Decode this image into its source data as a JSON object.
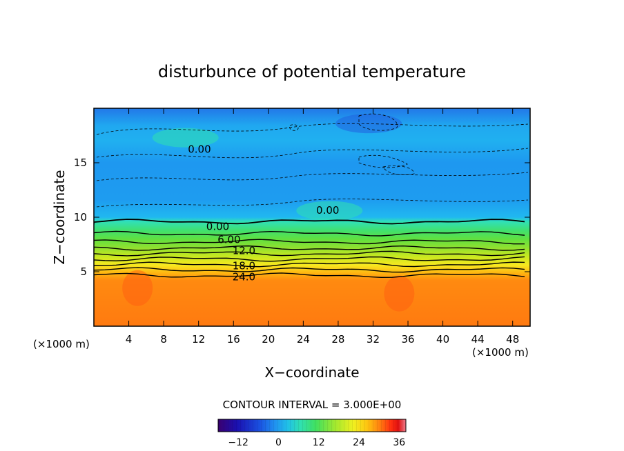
{
  "colors": {
    "background": "#ffffff",
    "text": "#000000",
    "contour_line": "#000000",
    "colormap": [
      "#3a0070",
      "#1a10b0",
      "#1a50e0",
      "#2090f0",
      "#20c0e8",
      "#30e0b0",
      "#40e060",
      "#a0e830",
      "#f0f020",
      "#ffc010",
      "#ff8010",
      "#ff3010",
      "#e01010",
      "#f08090"
    ]
  },
  "chart_data": {
    "type": "heatmap",
    "title": "disturbunce of potential temperature",
    "xlabel": "X−coordinate",
    "ylabel": "Z−coordinate",
    "x_unit_left": "(×1000 m)",
    "x_unit_right": "(×1000 m)",
    "xlim": [
      0,
      50
    ],
    "ylim": [
      0,
      20
    ],
    "x_ticks": [
      4,
      8,
      12,
      16,
      20,
      24,
      28,
      32,
      36,
      40,
      44,
      48
    ],
    "x_tick_labels": [
      "4",
      "8",
      "12",
      "16",
      "20",
      "24",
      "28",
      "32",
      "36",
      "40",
      "44",
      "48"
    ],
    "y_ticks": [
      5,
      10,
      15
    ],
    "y_tick_labels": [
      "5",
      "10",
      "15"
    ],
    "contour_interval_text": "CONTOUR INTERVAL = 3.000E+00",
    "colorbar": {
      "range": [
        -18,
        38
      ],
      "ticks": [
        -12,
        0,
        12,
        24,
        36
      ],
      "tick_labels": [
        "−12",
        "0",
        "12",
        "24",
        "36"
      ]
    },
    "contour_levels": [
      0,
      3,
      6,
      9,
      12,
      15,
      18,
      21,
      24
    ],
    "contour_labels": [
      {
        "text": "0.00",
        "x": 12.1,
        "z": 16.3
      },
      {
        "text": "0.00",
        "x": 26.8,
        "z": 10.7
      },
      {
        "text": "0.00",
        "x": 14.2,
        "z": 9.2
      },
      {
        "text": "6.00",
        "x": 15.5,
        "z": 8.0
      },
      {
        "text": "12.0",
        "x": 17.2,
        "z": 7.0
      },
      {
        "text": "18.0",
        "x": 17.2,
        "z": 5.6
      },
      {
        "text": "24.0",
        "x": 17.2,
        "z": 4.6
      }
    ],
    "vertical_profile": [
      {
        "z": 0.0,
        "theta": 28
      },
      {
        "z": 4.0,
        "theta": 28
      },
      {
        "z": 4.5,
        "theta": 25
      },
      {
        "z": 5.0,
        "theta": 22
      },
      {
        "z": 5.5,
        "theta": 19
      },
      {
        "z": 6.0,
        "theta": 16
      },
      {
        "z": 6.5,
        "theta": 13
      },
      {
        "z": 7.0,
        "theta": 10
      },
      {
        "z": 7.5,
        "theta": 7
      },
      {
        "z": 8.0,
        "theta": 5
      },
      {
        "z": 8.5,
        "theta": 3
      },
      {
        "z": 9.2,
        "theta": 1
      },
      {
        "z": 10.0,
        "theta": -1
      },
      {
        "z": 12.0,
        "theta": -2
      },
      {
        "z": 15.0,
        "theta": -3
      },
      {
        "z": 17.0,
        "theta": -1
      },
      {
        "z": 20.0,
        "theta": -4
      }
    ],
    "anomalies": [
      {
        "x": 10.5,
        "z": 17.3,
        "theta": 2.5,
        "label": "warm patch"
      },
      {
        "x": 27.0,
        "z": 10.6,
        "theta": 2.0,
        "label": "warm patch"
      },
      {
        "x": 31.5,
        "z": 18.6,
        "theta": -7,
        "label": "cold patch"
      },
      {
        "x": 5.0,
        "z": 3.5,
        "theta": 31,
        "label": "warm core"
      },
      {
        "x": 35.0,
        "z": 3.0,
        "theta": 31,
        "label": "warm core"
      }
    ],
    "grid": false,
    "legend_placement": "bottom"
  }
}
